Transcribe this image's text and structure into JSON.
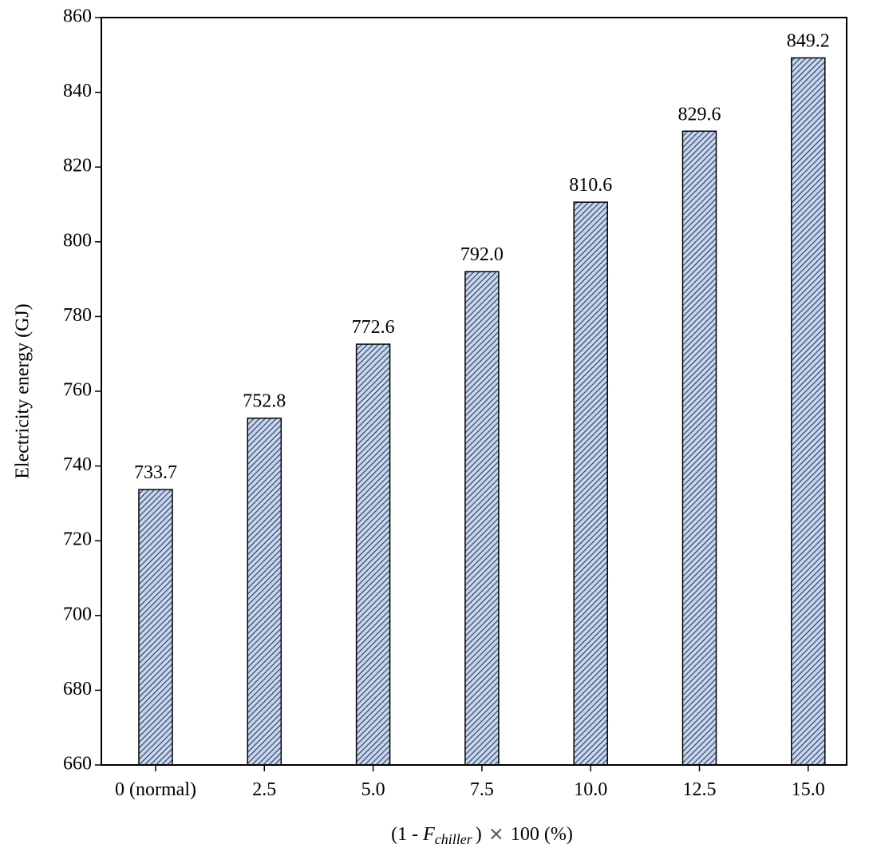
{
  "chart_data": {
    "type": "bar",
    "categories": [
      "0 (normal)",
      "2.5",
      "5.0",
      "7.5",
      "10.0",
      "12.5",
      "15.0"
    ],
    "values": [
      733.7,
      752.8,
      772.6,
      792.0,
      810.6,
      829.6,
      849.2
    ],
    "value_labels": [
      "733.7",
      "752.8",
      "772.6",
      "792.0",
      "810.6",
      "829.6",
      "849.2"
    ],
    "title": "",
    "ylabel": "Electricity energy (GJ)",
    "xlabel": {
      "prefix": "(1 - ",
      "variable": "F",
      "subscript": "chiller",
      "suffix": ")",
      "operator": "×",
      "tail": "100  (%)"
    },
    "ylim": [
      660,
      860
    ],
    "yticks": [
      660,
      680,
      700,
      720,
      740,
      760,
      780,
      800,
      820,
      840,
      860
    ],
    "grid": false,
    "legend": "none",
    "bar_fill": "#c9d6ea",
    "bar_hatch_color": "#1f3a66",
    "bar_stroke": "#000000"
  }
}
